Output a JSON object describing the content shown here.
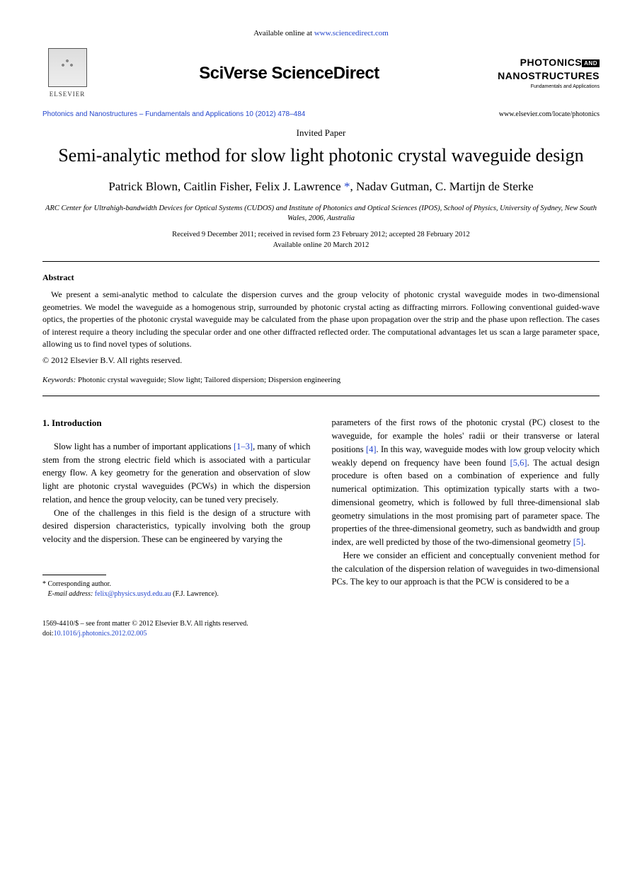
{
  "top": {
    "available_text": "Available online at ",
    "available_url": "www.sciencedirect.com"
  },
  "logos": {
    "elsevier": "ELSEVIER",
    "sciencedirect": "SciVerse ScienceDirect",
    "journal_main_1": "PHOTONICS",
    "journal_and": "AND",
    "journal_main_2": "NANOSTRUCTURES",
    "journal_sub": "Fundamentals and Applications"
  },
  "journal": {
    "reference": "Photonics and Nanostructures – Fundamentals and Applications 10 (2012) 478–484",
    "url": "www.elsevier.com/locate/photonics"
  },
  "article": {
    "type": "Invited Paper",
    "title": "Semi-analytic method for slow light photonic crystal waveguide design",
    "authors_line1": "Patrick Blown, Caitlin Fisher, Felix J. Lawrence",
    "authors_line2": ", Nadav Gutman, C. Martijn de Sterke",
    "affiliation": "ARC Center for Ultrahigh-bandwidth Devices for Optical Systems (CUDOS) and Institute of Photonics and Optical Sciences (IPOS), School of Physics, University of Sydney, New South Wales, 2006, Australia",
    "dates_line1": "Received 9 December 2011; received in revised form 23 February 2012; accepted 28 February 2012",
    "dates_line2": "Available online 20 March 2012"
  },
  "abstract": {
    "heading": "Abstract",
    "text": "We present a semi-analytic method to calculate the dispersion curves and the group velocity of photonic crystal waveguide modes in two-dimensional geometries. We model the waveguide as a homogenous strip, surrounded by photonic crystal acting as diffracting mirrors. Following conventional guided-wave optics, the properties of the photonic crystal waveguide may be calculated from the phase upon propagation over the strip and the phase upon reflection. The cases of interest require a theory including the specular order and one other diffracted reflected order. The computational advantages let us scan a large parameter space, allowing us to find novel types of solutions.",
    "copyright": "© 2012 Elsevier B.V. All rights reserved."
  },
  "keywords": {
    "label": "Keywords:",
    "text": "  Photonic crystal waveguide; Slow light; Tailored dispersion; Dispersion engineering"
  },
  "body": {
    "section_heading": "1.  Introduction",
    "col1_p1a": "Slow light has a number of important applications ",
    "col1_p1_ref": "[1–3]",
    "col1_p1b": ", many of which stem from the strong electric field which is associated with a particular energy flow. A key geometry for the generation and observation of slow light are photonic crystal waveguides (PCWs) in which the dispersion relation, and hence the group velocity, can be tuned very precisely.",
    "col1_p2": "One of the challenges in this field is the design of a structure with desired dispersion characteristics, typically involving both the group velocity and the dispersion. These can be engineered by varying the",
    "col2_p1a": "parameters of the first rows of the photonic crystal (PC) closest to the waveguide, for example the holes' radii or their transverse or lateral positions ",
    "col2_p1_ref1": "[4]",
    "col2_p1b": ". In this way, waveguide modes with low group velocity which weakly depend on frequency have been found ",
    "col2_p1_ref2": "[5,6]",
    "col2_p1c": ". The actual design procedure is often based on a combination of experience and fully numerical optimization. This optimization typically starts with a two-dimensional geometry, which is followed by full three-dimensional slab geometry simulations in the most promising part of parameter space. The properties of the three-dimensional geometry, such as bandwidth and group index, are well predicted by those of the two-dimensional geometry ",
    "col2_p1_ref3": "[5]",
    "col2_p1d": ".",
    "col2_p2": "Here we consider an efficient and conceptually convenient method for the calculation of the dispersion relation of waveguides in two-dimensional PCs. The key to our approach is that the PCW is considered to be a"
  },
  "footnote": {
    "corresponding": "Corresponding author.",
    "email_label": "E-mail address:",
    "email": "felix@physics.usyd.edu.au",
    "email_name": "(F.J. Lawrence)."
  },
  "footer": {
    "issn": "1569-4410/$ – see front matter © 2012 Elsevier B.V. All rights reserved.",
    "doi_label": "doi:",
    "doi": "10.1016/j.photonics.2012.02.005"
  },
  "colors": {
    "link": "#2244cc",
    "text": "#000000",
    "background": "#ffffff"
  },
  "typography": {
    "title_fontsize": 26,
    "authors_fontsize": 17,
    "body_fontsize": 12.5,
    "abstract_fontsize": 12,
    "footnote_fontsize": 10
  }
}
